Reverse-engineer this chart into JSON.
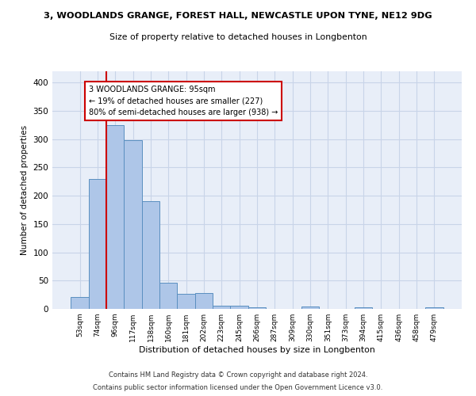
{
  "title_line1": "3, WOODLANDS GRANGE, FOREST HALL, NEWCASTLE UPON TYNE, NE12 9DG",
  "title_line2": "Size of property relative to detached houses in Longbenton",
  "xlabel": "Distribution of detached houses by size in Longbenton",
  "ylabel": "Number of detached properties",
  "footer_line1": "Contains HM Land Registry data © Crown copyright and database right 2024.",
  "footer_line2": "Contains public sector information licensed under the Open Government Licence v3.0.",
  "bar_labels": [
    "53sqm",
    "74sqm",
    "96sqm",
    "117sqm",
    "138sqm",
    "160sqm",
    "181sqm",
    "202sqm",
    "223sqm",
    "245sqm",
    "266sqm",
    "287sqm",
    "309sqm",
    "330sqm",
    "351sqm",
    "373sqm",
    "394sqm",
    "415sqm",
    "436sqm",
    "458sqm",
    "479sqm"
  ],
  "bar_values": [
    21,
    230,
    325,
    298,
    190,
    46,
    27,
    28,
    5,
    6,
    3,
    0,
    0,
    4,
    0,
    0,
    3,
    0,
    0,
    0,
    3
  ],
  "bar_color": "#aec6e8",
  "bar_edge_color": "#5a8fc0",
  "vline_x": 1.5,
  "vline_color": "#cc0000",
  "annotation_text": "3 WOODLANDS GRANGE: 95sqm\n← 19% of detached houses are smaller (227)\n80% of semi-detached houses are larger (938) →",
  "annotation_box_color": "#ffffff",
  "annotation_box_edge": "#cc0000",
  "ylim": [
    0,
    420
  ],
  "yticks": [
    0,
    50,
    100,
    150,
    200,
    250,
    300,
    350,
    400
  ],
  "grid_color": "#c8d4e8",
  "bg_color": "#e8eef8"
}
